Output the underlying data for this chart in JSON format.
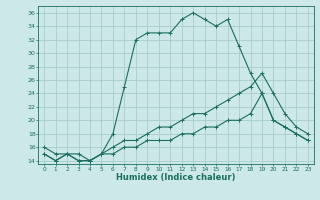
{
  "xlabel": "Humidex (Indice chaleur)",
  "background_color": "#cce8e8",
  "grid_color": "#aacccc",
  "line_color": "#1a6e60",
  "xlim": [
    -0.5,
    23.5
  ],
  "ylim": [
    13.5,
    37
  ],
  "xticks": [
    0,
    1,
    2,
    3,
    4,
    5,
    6,
    7,
    8,
    9,
    10,
    11,
    12,
    13,
    14,
    15,
    16,
    17,
    18,
    19,
    20,
    21,
    22,
    23
  ],
  "yticks": [
    14,
    16,
    18,
    20,
    22,
    24,
    26,
    28,
    30,
    32,
    34,
    36
  ],
  "line1_x": [
    0,
    1,
    2,
    3,
    4,
    5,
    6,
    7,
    8,
    9,
    10,
    11,
    12,
    13,
    14,
    15,
    16,
    17,
    18,
    19,
    20,
    21,
    22,
    23
  ],
  "line1_y": [
    16,
    15,
    15,
    15,
    14,
    15,
    18,
    25,
    32,
    33,
    33,
    33,
    35,
    36,
    35,
    34,
    35,
    31,
    27,
    24,
    20,
    19,
    18,
    17
  ],
  "line2_x": [
    0,
    1,
    2,
    3,
    4,
    5,
    6,
    7,
    8,
    9,
    10,
    11,
    12,
    13,
    14,
    15,
    16,
    17,
    18,
    19,
    20,
    21,
    22,
    23
  ],
  "line2_y": [
    15,
    14,
    15,
    14,
    14,
    15,
    16,
    17,
    17,
    18,
    19,
    19,
    20,
    21,
    21,
    22,
    23,
    24,
    25,
    27,
    24,
    21,
    19,
    18
  ],
  "line3_x": [
    0,
    1,
    2,
    3,
    4,
    5,
    6,
    7,
    8,
    9,
    10,
    11,
    12,
    13,
    14,
    15,
    16,
    17,
    18,
    19,
    20,
    21,
    22,
    23
  ],
  "line3_y": [
    15,
    14,
    15,
    14,
    14,
    15,
    15,
    16,
    16,
    17,
    17,
    17,
    18,
    18,
    19,
    19,
    20,
    20,
    21,
    24,
    20,
    19,
    18,
    17
  ]
}
